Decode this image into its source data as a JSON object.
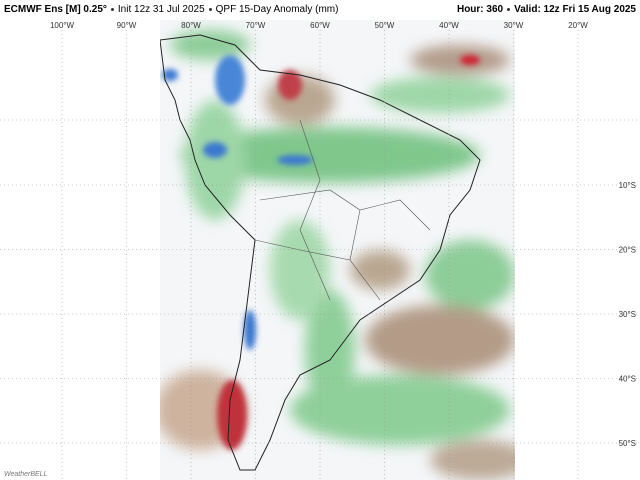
{
  "header": {
    "model": "ECMWF Ens [M] 0.25°",
    "init": "Init 12z 31 Jul 2025",
    "product": "QPF 15-Day Anomaly (mm)",
    "hour": "Hour: 360",
    "valid": "Valid: 12z Fri 15 Aug 2025"
  },
  "map": {
    "lon_labels": [
      "100°W",
      "90°W",
      "80°W",
      "70°W",
      "60°W",
      "50°W",
      "40°W",
      "30°W",
      "20°W"
    ],
    "lat_labels": [
      "10°S",
      "20°S",
      "30°S",
      "40°S",
      "50°S"
    ]
  },
  "logo": "WeatherBELL"
}
